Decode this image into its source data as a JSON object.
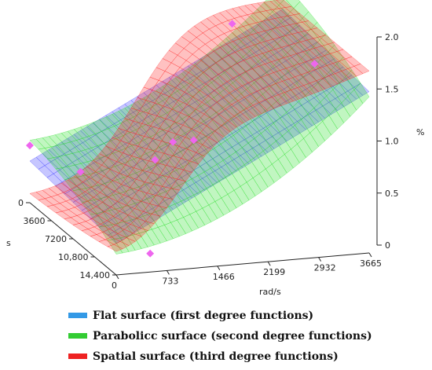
{
  "chart_data": {
    "type": "surface3d",
    "x_axis": {
      "label": "rad/s",
      "ticks": [
        0,
        733,
        1466,
        2199,
        2932,
        3665
      ],
      "tick_labels": [
        "0",
        "733",
        "1466",
        "2199",
        "2932",
        "3665"
      ],
      "range": [
        0,
        3665
      ]
    },
    "y_axis": {
      "label": "s",
      "ticks": [
        0,
        3600,
        7200,
        10800,
        14400
      ],
      "tick_labels": [
        "0",
        "3600",
        "7200",
        "10,800",
        "14,400"
      ],
      "range": [
        0,
        14400
      ]
    },
    "z_axis": {
      "label": "%",
      "ticks": [
        0,
        0.5,
        1.0,
        1.5,
        2.0
      ],
      "tick_labels": [
        "0",
        "0.5",
        "1.0",
        "1.5",
        "2.0"
      ],
      "range": [
        0,
        2.0
      ]
    },
    "series": [
      {
        "name": "Flat surface (first degree functions)",
        "color": "#3399e6",
        "surface_color": "#3333ff",
        "degree": 1
      },
      {
        "name": "Parabolicc surface (second degree functions)",
        "color": "#33cc33",
        "surface_color": "#22dd22",
        "degree": 2
      },
      {
        "name": "Spatial surface (third degree functions)",
        "color": "#ee2222",
        "surface_color": "#ff2020",
        "degree": 3
      }
    ],
    "measured_points": {
      "color": "#ee66ee",
      "points": [
        [
          0,
          0,
          0.55
        ],
        [
          300,
          5000,
          0.52
        ],
        [
          700,
          12000,
          0.05
        ],
        [
          1466,
          4000,
          0.52
        ],
        [
          1900,
          2000,
          0.57
        ],
        [
          2200,
          2000,
          0.57
        ],
        [
          2932,
          0,
          1.55
        ],
        [
          3665,
          0,
          1.8
        ],
        [
          3500,
          7200,
          1.48
        ]
      ]
    }
  }
}
